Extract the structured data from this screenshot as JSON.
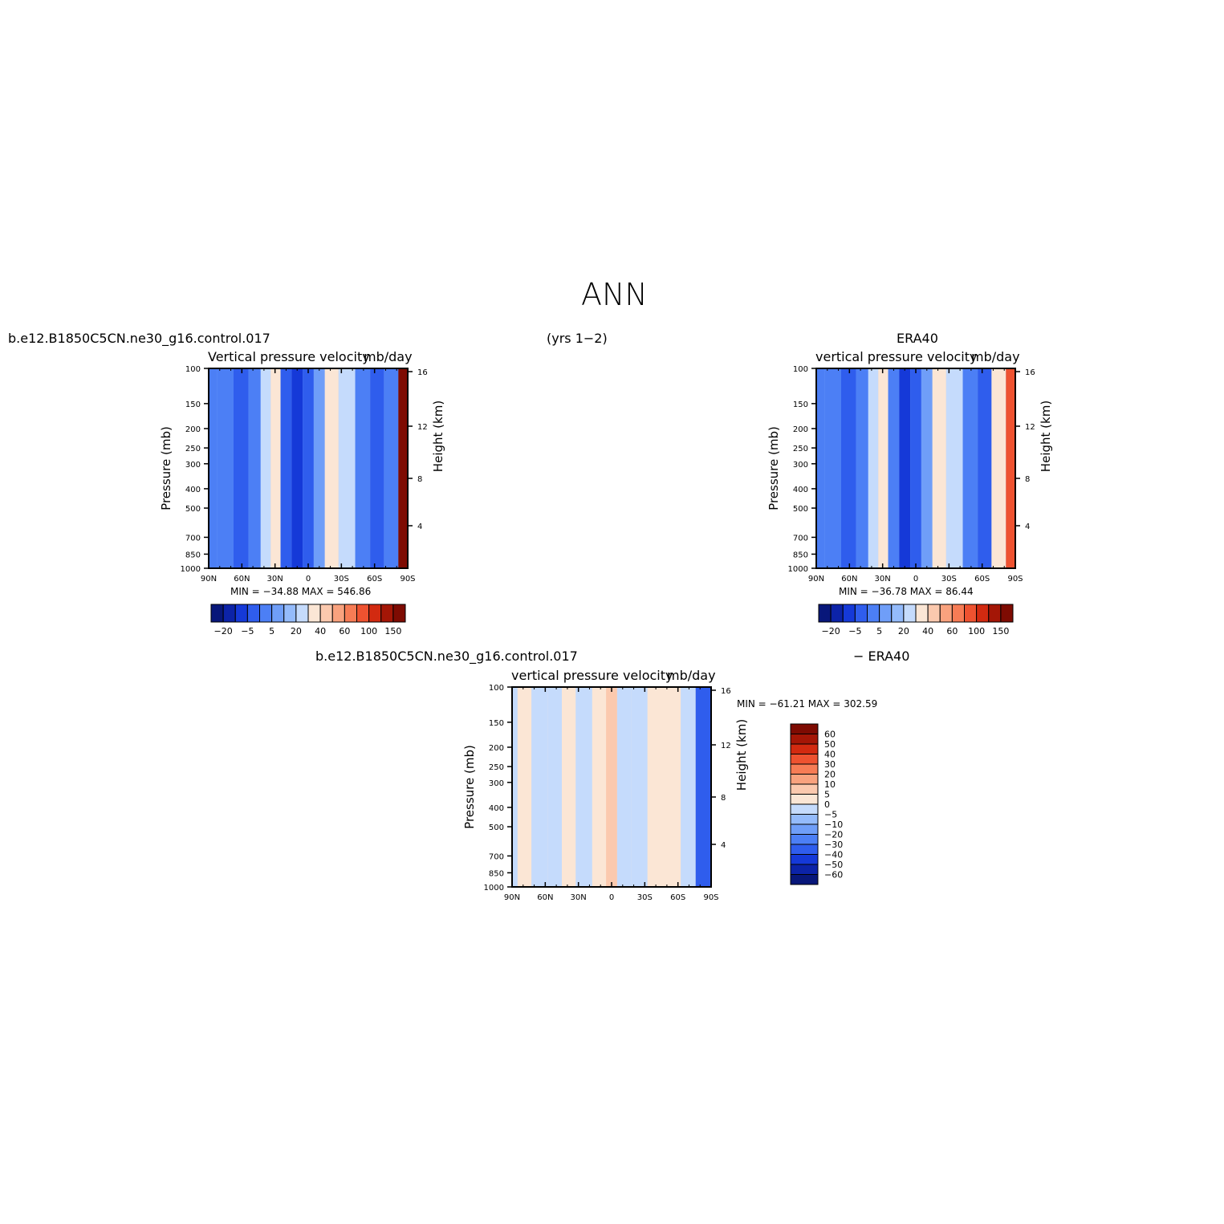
{
  "page": {
    "title": "ANN",
    "years": "(yrs 1−2)"
  },
  "panels": {
    "model": {
      "case_name": "b.e12.B1850C5CN.ne30_g16.control.017",
      "variable": "Vertical  pressure  velocity",
      "units": "mb/day",
      "minmax": "MIN = −34.88   MAX = 546.86"
    },
    "obs": {
      "case_name": "ERA40",
      "variable": "vertical  pressure  velocity",
      "units": "mb/day",
      "minmax": "MIN = −36.78   MAX =   86.44"
    },
    "diff": {
      "case_name": "b.e12.B1850C5CN.ne30_g16.control.017",
      "minus": "−  ERA40",
      "variable": "vertical  pressure  velocity",
      "units": "mb/day",
      "minmax": "MIN = −61.21   MAX = 302.59"
    }
  },
  "chart_data": [
    {
      "type": "heatmap",
      "name": "model",
      "x_ticks": [
        "90N",
        "60N",
        "30N",
        "0",
        "30S",
        "60S",
        "90S"
      ],
      "x_range": [
        90,
        -90
      ],
      "y_label": "Pressure (mb)",
      "y_ticks": [
        100,
        150,
        200,
        250,
        300,
        400,
        500,
        700,
        850,
        1000
      ],
      "y_scale": "log",
      "y_range": [
        100,
        1000
      ],
      "y2_label": "Height (km)",
      "y2_ticks": [
        4,
        8,
        12,
        16
      ],
      "colorbar": {
        "orientation": "horizontal",
        "tick_labels": [
          "−20",
          "−5",
          "5",
          "20",
          "40",
          "60",
          "100",
          "150"
        ],
        "colors": [
          "#08177a",
          "#0c23a8",
          "#1539d8",
          "#2f5ded",
          "#4c7ff5",
          "#6f9ef8",
          "#94bbfb",
          "#c5dbfc",
          "#fbe6d5",
          "#fbc9ae",
          "#f9a27e",
          "#f77c55",
          "#ee5230",
          "#d22a10",
          "#a41606",
          "#7e0b02"
        ]
      },
      "bands": [
        {
          "lat": 90,
          "value": -7
        },
        {
          "lat": 75,
          "value": -10
        },
        {
          "lat": 60,
          "value": -14
        },
        {
          "lat": 48,
          "value": -9
        },
        {
          "lat": 38,
          "value": 8
        },
        {
          "lat": 30,
          "value": 12
        },
        {
          "lat": 20,
          "value": -12
        },
        {
          "lat": 10,
          "value": -30
        },
        {
          "lat": 0,
          "value": -14
        },
        {
          "lat": -10,
          "value": -3
        },
        {
          "lat": -20,
          "value": 12
        },
        {
          "lat": -35,
          "value": 6
        },
        {
          "lat": -50,
          "value": -8
        },
        {
          "lat": -62,
          "value": -18
        },
        {
          "lat": -75,
          "value": -9
        },
        {
          "lat": -88,
          "value": 150
        }
      ]
    },
    {
      "type": "heatmap",
      "name": "obs",
      "x_ticks": [
        "90N",
        "60N",
        "30N",
        "0",
        "30S",
        "60S",
        "90S"
      ],
      "x_range": [
        90,
        -90
      ],
      "y_label": "Pressure (mb)",
      "y_ticks": [
        100,
        150,
        200,
        250,
        300,
        400,
        500,
        700,
        850,
        1000
      ],
      "y_scale": "log",
      "y_range": [
        100,
        1000
      ],
      "y2_label": "Height (km)",
      "y2_ticks": [
        4,
        8,
        12,
        16
      ],
      "colorbar": {
        "orientation": "horizontal",
        "tick_labels": [
          "−20",
          "−5",
          "5",
          "20",
          "40",
          "60",
          "100",
          "150"
        ],
        "colors": [
          "#08177a",
          "#0c23a8",
          "#1539d8",
          "#2f5ded",
          "#4c7ff5",
          "#6f9ef8",
          "#94bbfb",
          "#c5dbfc",
          "#fbe6d5",
          "#fbc9ae",
          "#f9a27e",
          "#f77c55",
          "#ee5230",
          "#d22a10",
          "#a41606",
          "#7e0b02"
        ]
      },
      "bands": [
        {
          "lat": 90,
          "value": -6
        },
        {
          "lat": 75,
          "value": -9
        },
        {
          "lat": 60,
          "value": -13
        },
        {
          "lat": 48,
          "value": -8
        },
        {
          "lat": 38,
          "value": 8
        },
        {
          "lat": 30,
          "value": 14
        },
        {
          "lat": 20,
          "value": -10
        },
        {
          "lat": 10,
          "value": -28
        },
        {
          "lat": 0,
          "value": -13
        },
        {
          "lat": -10,
          "value": -2
        },
        {
          "lat": -20,
          "value": 14
        },
        {
          "lat": -35,
          "value": 5
        },
        {
          "lat": -50,
          "value": -9
        },
        {
          "lat": -62,
          "value": -20
        },
        {
          "lat": -75,
          "value": 10
        },
        {
          "lat": -88,
          "value": 60
        }
      ]
    },
    {
      "type": "heatmap",
      "name": "diff",
      "x_ticks": [
        "90N",
        "60N",
        "30N",
        "0",
        "30S",
        "60S",
        "90S"
      ],
      "x_range": [
        90,
        -90
      ],
      "y_label": "Pressure (mb)",
      "y_ticks": [
        100,
        150,
        200,
        250,
        300,
        400,
        500,
        700,
        850,
        1000
      ],
      "y_scale": "log",
      "y_range": [
        100,
        1000
      ],
      "y2_label": "Height (km)",
      "y2_ticks": [
        4,
        8,
        12,
        16
      ],
      "colorbar": {
        "orientation": "vertical",
        "tick_labels": [
          "60",
          "50",
          "40",
          "30",
          "20",
          "10",
          "5",
          "0",
          "−5",
          "−10",
          "−20",
          "−30",
          "−40",
          "−50",
          "−60"
        ],
        "colors": [
          "#7e0b02",
          "#a41606",
          "#d22a10",
          "#ee5230",
          "#f77c55",
          "#f9a27e",
          "#fbc9ae",
          "#fbe6d5",
          "#c5dbfc",
          "#94bbfb",
          "#6f9ef8",
          "#4c7ff5",
          "#2f5ded",
          "#1539d8",
          "#0c23a8",
          "#08177a"
        ]
      },
      "bands": [
        {
          "lat": 90,
          "value": -1
        },
        {
          "lat": 80,
          "value": 2
        },
        {
          "lat": 65,
          "value": -1
        },
        {
          "lat": 50,
          "value": -2
        },
        {
          "lat": 40,
          "value": 1
        },
        {
          "lat": 25,
          "value": -1
        },
        {
          "lat": 10,
          "value": 2
        },
        {
          "lat": 0,
          "value": 6
        },
        {
          "lat": -10,
          "value": -1
        },
        {
          "lat": -25,
          "value": -2
        },
        {
          "lat": -40,
          "value": 1
        },
        {
          "lat": -55,
          "value": 2
        },
        {
          "lat": -70,
          "value": -3
        },
        {
          "lat": -82,
          "value": -40
        }
      ]
    }
  ]
}
